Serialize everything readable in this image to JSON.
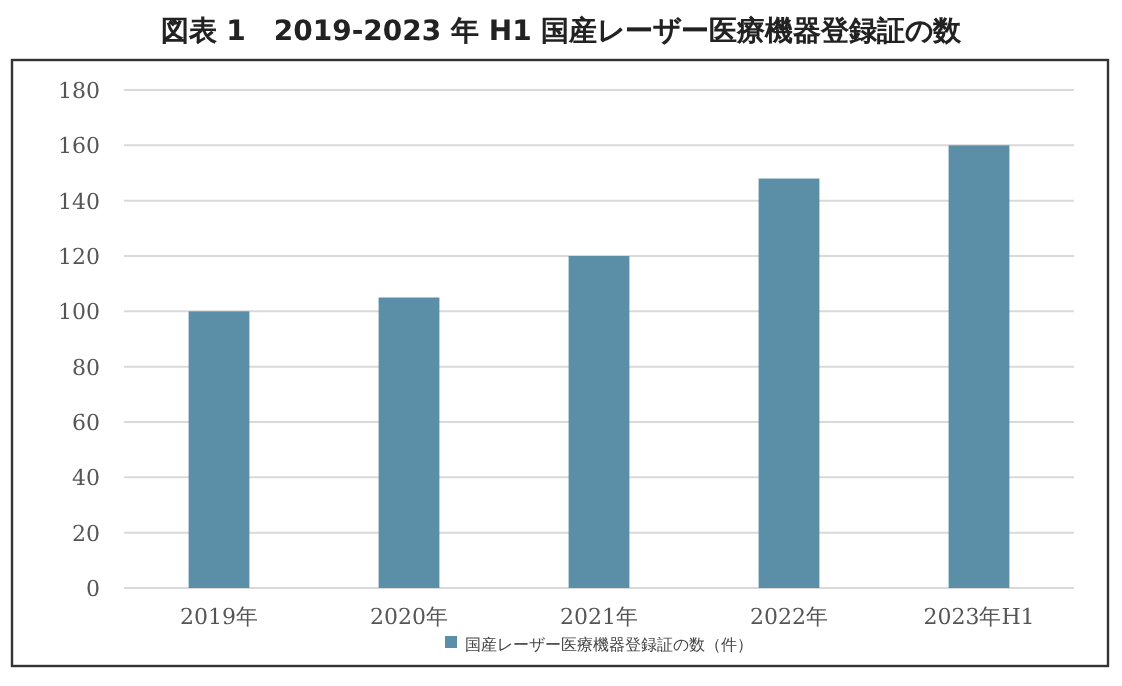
{
  "chart_data": {
    "type": "bar",
    "title": "図表 1　2019-2023 年 H1 国産レーザー医療機器登録証の数",
    "categories": [
      "2019年",
      "2020年",
      "2021年",
      "2022年",
      "2023年H1"
    ],
    "series": [
      {
        "name": "国産レーザー医療機器登録証の数（件）",
        "color": "#5b8fa8",
        "values": [
          100,
          105,
          120,
          148,
          160
        ]
      }
    ],
    "ylim": [
      0,
      180
    ],
    "yticks": [
      0,
      20,
      40,
      60,
      80,
      100,
      120,
      140,
      160,
      180
    ],
    "grid": "y",
    "legend": "bottom"
  }
}
